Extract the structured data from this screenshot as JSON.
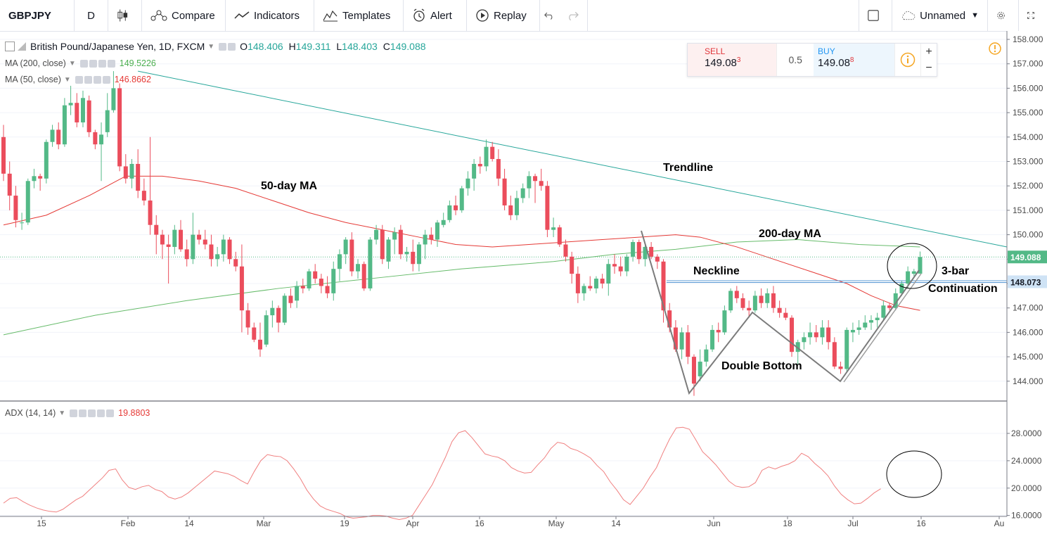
{
  "toolbar": {
    "symbol": "GBPJPY",
    "interval": "D",
    "compare": "Compare",
    "indicators": "Indicators",
    "templates": "Templates",
    "alert": "Alert",
    "replay": "Replay",
    "layout_name": "Unnamed"
  },
  "legend": {
    "title": "British Pound/Japanese Yen, 1D, FXCM",
    "ohlc": {
      "o_label": "O",
      "o": "148.406",
      "h_label": "H",
      "h": "149.311",
      "l_label": "L",
      "l": "148.403",
      "c_label": "C",
      "c": "149.088"
    },
    "ma200": {
      "label": "MA (200, close)",
      "value": "149.5226",
      "color": "#4caf50"
    },
    "ma50": {
      "label": "MA (50, close)",
      "value": "146.8662",
      "color": "#e53935"
    },
    "adx": {
      "label": "ADX (14, 14)",
      "value": "19.8803",
      "color": "#e53935"
    }
  },
  "trade": {
    "sell_label": "SELL",
    "sell_main": "149.08",
    "sell_sup": "3",
    "spread": "0.5",
    "buy_label": "BUY",
    "buy_main": "149.08",
    "buy_sup": "8"
  },
  "annotations": {
    "trendline": "Trendline",
    "ma50": "50-day MA",
    "ma200": "200-day MA",
    "neckline": "Neckline",
    "three_bar": "3-bar",
    "continuation": "Continuation",
    "double_bottom": "Double Bottom"
  },
  "colors": {
    "up": "#53b987",
    "down": "#eb4d5c",
    "trend": "#26a69a",
    "ma50": "#e53935",
    "ma200": "#66bb6a",
    "adx": "#f08080"
  },
  "chart_data": {
    "type": "candlestick",
    "price_axis": {
      "min": 143.5,
      "max": 158.0,
      "ticks": [
        "158.000",
        "157.000",
        "156.000",
        "155.000",
        "154.000",
        "153.000",
        "152.000",
        "151.000",
        "150.000",
        "149.000",
        "148.000",
        "147.000",
        "146.000",
        "145.000",
        "144.000"
      ]
    },
    "time_axis_labels": [
      "15",
      "Feb",
      "14",
      "Mar",
      "19",
      "Apr",
      "16",
      "May",
      "14",
      "Jun",
      "18",
      "Jul",
      "16",
      "Au"
    ],
    "last_price": "149.088",
    "neckline_price": "148.073",
    "candles": [
      [
        154.0,
        154.5,
        152.2,
        152.5
      ],
      [
        152.5,
        153.0,
        151.0,
        151.6
      ],
      [
        151.6,
        152.0,
        150.3,
        150.6
      ],
      [
        150.5,
        150.9,
        150.2,
        150.5
      ],
      [
        150.5,
        152.3,
        150.4,
        152.2
      ],
      [
        152.2,
        152.7,
        151.9,
        152.4
      ],
      [
        152.4,
        152.5,
        151.8,
        152.3
      ],
      [
        152.3,
        153.9,
        152.1,
        153.8
      ],
      [
        153.8,
        154.5,
        153.6,
        154.3
      ],
      [
        154.3,
        154.6,
        153.5,
        153.7
      ],
      [
        153.7,
        155.6,
        153.6,
        155.3
      ],
      [
        155.3,
        156.1,
        154.9,
        155.4
      ],
      [
        155.4,
        155.8,
        154.4,
        154.6
      ],
      [
        154.6,
        155.9,
        154.4,
        155.6
      ],
      [
        155.5,
        155.7,
        154.0,
        154.2
      ],
      [
        154.2,
        154.3,
        153.5,
        153.7
      ],
      [
        153.7,
        154.6,
        152.2,
        154.1
      ],
      [
        154.2,
        155.8,
        154.0,
        155.1
      ],
      [
        155.1,
        156.7,
        155.0,
        156.0
      ],
      [
        156.0,
        156.2,
        152.6,
        152.8
      ],
      [
        152.8,
        153.3,
        152.1,
        152.3
      ],
      [
        152.3,
        153.1,
        151.9,
        152.9
      ],
      [
        152.9,
        153.5,
        151.5,
        151.8
      ],
      [
        151.8,
        152.3,
        151.2,
        151.4
      ],
      [
        151.4,
        154.0,
        150.0,
        150.4
      ],
      [
        150.4,
        150.8,
        149.2,
        150.0
      ],
      [
        150.0,
        150.2,
        149.0,
        149.6
      ],
      [
        149.6,
        150.0,
        148.0,
        149.5
      ],
      [
        149.5,
        150.4,
        149.2,
        150.2
      ],
      [
        150.2,
        150.6,
        149.3,
        149.4
      ],
      [
        149.4,
        149.8,
        148.7,
        149.0
      ],
      [
        149.0,
        150.9,
        148.8,
        150.0
      ],
      [
        150.0,
        150.2,
        149.6,
        149.8
      ],
      [
        149.8,
        150.2,
        149.4,
        149.6
      ],
      [
        149.6,
        150.0,
        148.7,
        149.0
      ],
      [
        149.0,
        149.5,
        148.7,
        149.2
      ],
      [
        149.2,
        150.0,
        148.9,
        149.8
      ],
      [
        149.8,
        149.9,
        148.8,
        149.0
      ],
      [
        149.0,
        149.3,
        148.5,
        148.7
      ],
      [
        148.7,
        149.6,
        146.0,
        146.9
      ],
      [
        146.9,
        147.2,
        145.9,
        146.2
      ],
      [
        146.2,
        146.4,
        145.6,
        145.7
      ],
      [
        145.7,
        146.4,
        145.0,
        145.3
      ],
      [
        145.5,
        146.9,
        145.4,
        146.7
      ],
      [
        146.7,
        147.3,
        146.2,
        147.0
      ],
      [
        147.0,
        147.1,
        146.0,
        146.4
      ],
      [
        146.4,
        147.6,
        146.3,
        147.5
      ],
      [
        147.5,
        147.8,
        147.0,
        147.2
      ],
      [
        147.3,
        148.1,
        147.0,
        147.9
      ],
      [
        147.9,
        148.2,
        147.6,
        147.8
      ],
      [
        147.8,
        148.6,
        147.7,
        148.5
      ],
      [
        148.5,
        148.8,
        148.0,
        148.2
      ],
      [
        148.2,
        148.4,
        147.6,
        147.9
      ],
      [
        147.9,
        148.3,
        147.4,
        147.6
      ],
      [
        147.6,
        148.9,
        147.3,
        148.6
      ],
      [
        148.6,
        149.4,
        148.1,
        149.2
      ],
      [
        149.2,
        149.9,
        148.8,
        149.8
      ],
      [
        149.8,
        150.1,
        148.3,
        148.5
      ],
      [
        148.5,
        149.0,
        148.2,
        148.8
      ],
      [
        148.8,
        148.9,
        147.7,
        147.8
      ],
      [
        147.8,
        149.9,
        147.7,
        149.8
      ],
      [
        149.8,
        150.4,
        149.6,
        150.2
      ],
      [
        150.2,
        150.4,
        148.8,
        149.0
      ],
      [
        148.9,
        149.9,
        148.6,
        149.8
      ],
      [
        149.8,
        150.3,
        149.2,
        150.1
      ],
      [
        150.2,
        150.4,
        149.0,
        149.2
      ],
      [
        149.2,
        149.5,
        148.9,
        149.3
      ],
      [
        149.3,
        149.8,
        148.5,
        148.8
      ],
      [
        148.8,
        149.7,
        148.5,
        149.6
      ],
      [
        149.6,
        150.2,
        149.0,
        150.0
      ],
      [
        150.0,
        150.3,
        149.6,
        149.8
      ],
      [
        149.8,
        150.6,
        149.5,
        150.5
      ],
      [
        150.4,
        150.9,
        150.3,
        150.6
      ],
      [
        150.6,
        151.4,
        150.5,
        151.2
      ],
      [
        151.2,
        151.6,
        150.8,
        151.0
      ],
      [
        151.0,
        152.0,
        150.9,
        151.9
      ],
      [
        151.9,
        152.6,
        151.6,
        152.3
      ],
      [
        152.3,
        153.1,
        151.8,
        152.9
      ],
      [
        152.9,
        153.2,
        152.5,
        152.8
      ],
      [
        152.8,
        153.9,
        152.6,
        153.6
      ],
      [
        153.6,
        153.8,
        153.0,
        153.1
      ],
      [
        153.1,
        153.5,
        152.0,
        152.3
      ],
      [
        152.3,
        152.7,
        151.0,
        151.2
      ],
      [
        151.2,
        151.6,
        150.6,
        150.8
      ],
      [
        150.8,
        151.8,
        150.6,
        151.5
      ],
      [
        151.5,
        152.1,
        151.3,
        151.9
      ],
      [
        151.9,
        152.6,
        151.5,
        152.4
      ],
      [
        152.4,
        152.5,
        151.3,
        152.2
      ],
      [
        152.2,
        152.7,
        151.8,
        152.0
      ],
      [
        152.0,
        152.2,
        149.9,
        150.2
      ],
      [
        150.2,
        150.7,
        149.9,
        150.3
      ],
      [
        150.3,
        150.4,
        149.5,
        149.6
      ],
      [
        149.6,
        149.8,
        148.9,
        149.1
      ],
      [
        149.1,
        149.3,
        148.0,
        148.4
      ],
      [
        148.4,
        148.7,
        147.2,
        147.6
      ],
      [
        147.6,
        148.0,
        147.3,
        147.9
      ],
      [
        147.9,
        148.3,
        147.7,
        147.8
      ],
      [
        147.8,
        148.3,
        147.6,
        148.2
      ],
      [
        148.2,
        148.4,
        147.8,
        148.0
      ],
      [
        148.0,
        149.0,
        147.5,
        148.8
      ],
      [
        148.8,
        149.2,
        148.4,
        148.7
      ],
      [
        148.7,
        149.1,
        148.3,
        148.5
      ],
      [
        148.5,
        149.2,
        148.3,
        149.1
      ],
      [
        149.1,
        149.8,
        148.9,
        149.7
      ],
      [
        149.7,
        149.8,
        148.8,
        149.0
      ],
      [
        149.0,
        149.6,
        148.7,
        149.5
      ],
      [
        149.5,
        149.7,
        149.0,
        149.1
      ],
      [
        149.1,
        149.2,
        148.6,
        148.9
      ],
      [
        148.9,
        149.0,
        146.4,
        146.9
      ],
      [
        146.9,
        147.2,
        146.0,
        146.2
      ],
      [
        146.2,
        146.5,
        145.2,
        145.3
      ],
      [
        145.3,
        146.2,
        144.9,
        146.0
      ],
      [
        146.0,
        146.3,
        144.7,
        145.0
      ],
      [
        145.0,
        145.1,
        143.4,
        143.9
      ],
      [
        144.2,
        145.3,
        144.0,
        144.8
      ],
      [
        144.8,
        145.5,
        144.6,
        145.3
      ],
      [
        145.3,
        146.3,
        145.2,
        146.1
      ],
      [
        146.1,
        146.4,
        145.6,
        146.0
      ],
      [
        146.0,
        147.1,
        145.9,
        146.9
      ],
      [
        146.9,
        147.8,
        146.8,
        147.7
      ],
      [
        147.7,
        147.9,
        147.2,
        147.4
      ],
      [
        147.4,
        147.6,
        146.9,
        147.0
      ],
      [
        147.0,
        147.3,
        146.6,
        146.9
      ],
      [
        146.9,
        147.7,
        146.8,
        147.5
      ],
      [
        147.5,
        147.8,
        147.0,
        147.2
      ],
      [
        147.2,
        147.8,
        147.0,
        147.6
      ],
      [
        147.6,
        147.9,
        146.8,
        147.0
      ],
      [
        147.0,
        147.3,
        146.6,
        146.8
      ],
      [
        146.8,
        147.0,
        146.5,
        146.6
      ],
      [
        146.6,
        146.7,
        145.0,
        145.2
      ],
      [
        145.2,
        145.7,
        144.7,
        145.6
      ],
      [
        145.6,
        146.0,
        145.3,
        145.8
      ],
      [
        145.8,
        146.4,
        145.5,
        146.0
      ],
      [
        146.0,
        146.3,
        145.6,
        145.8
      ],
      [
        145.8,
        146.5,
        145.5,
        146.2
      ],
      [
        146.2,
        146.5,
        145.3,
        145.6
      ],
      [
        145.6,
        145.8,
        144.5,
        144.6
      ],
      [
        144.6,
        144.8,
        144.3,
        144.5
      ],
      [
        144.5,
        146.2,
        144.4,
        146.1
      ],
      [
        146.0,
        146.4,
        145.6,
        146.1
      ],
      [
        146.1,
        146.5,
        145.9,
        146.2
      ],
      [
        146.2,
        146.7,
        146.1,
        146.4
      ],
      [
        146.4,
        146.7,
        146.1,
        146.5
      ],
      [
        146.5,
        146.8,
        146.2,
        146.6
      ],
      [
        146.6,
        147.3,
        146.5,
        147.1
      ],
      [
        147.1,
        147.2,
        146.9,
        147.0
      ],
      [
        147.0,
        147.8,
        146.9,
        147.6
      ],
      [
        147.6,
        148.1,
        147.5,
        148.0
      ],
      [
        148.0,
        148.7,
        147.8,
        148.5
      ],
      [
        148.4,
        148.6,
        148.3,
        148.5
      ],
      [
        148.406,
        149.311,
        148.403,
        149.088
      ]
    ],
    "ma50": [
      [
        0,
        150.4
      ],
      [
        7,
        150.8
      ],
      [
        14,
        151.6
      ],
      [
        20,
        152.4
      ],
      [
        26,
        152.4
      ],
      [
        32,
        152.2
      ],
      [
        38,
        151.9
      ],
      [
        44,
        151.4
      ],
      [
        50,
        150.9
      ],
      [
        56,
        150.5
      ],
      [
        62,
        150.2
      ],
      [
        68,
        149.9
      ],
      [
        74,
        149.6
      ],
      [
        80,
        149.5
      ],
      [
        86,
        149.6
      ],
      [
        92,
        149.7
      ],
      [
        98,
        149.8
      ],
      [
        104,
        149.9
      ],
      [
        110,
        150.0
      ],
      [
        114,
        149.9
      ],
      [
        120,
        149.5
      ],
      [
        126,
        149.0
      ],
      [
        132,
        148.5
      ],
      [
        138,
        148.0
      ],
      [
        142,
        147.5
      ],
      [
        146,
        147.1
      ],
      [
        150,
        146.9
      ]
    ],
    "ma200": [
      [
        0,
        145.9
      ],
      [
        15,
        146.7
      ],
      [
        30,
        147.3
      ],
      [
        45,
        147.8
      ],
      [
        60,
        148.2
      ],
      [
        75,
        148.6
      ],
      [
        90,
        148.9
      ],
      [
        100,
        149.2
      ],
      [
        110,
        149.4
      ],
      [
        120,
        149.7
      ],
      [
        130,
        149.8
      ],
      [
        140,
        149.6
      ],
      [
        150,
        149.5
      ]
    ],
    "trendline": [
      [
        22,
        156.7
      ],
      [
        160,
        149.5
      ]
    ],
    "adx_axis": {
      "min": 15.0,
      "max": 29.5,
      "ticks": [
        "28.0000",
        "24.0000",
        "20.0000",
        "16.0000"
      ]
    },
    "adx": [
      17.8,
      18.5,
      18.6,
      18.0,
      17.5,
      17.1,
      16.8,
      16.6,
      16.5,
      16.9,
      17.6,
      18.3,
      18.8,
      19.7,
      20.6,
      21.5,
      22.6,
      22.8,
      21.2,
      20.1,
      19.8,
      20.2,
      20.4,
      19.8,
      19.5,
      18.7,
      18.4,
      18.7,
      19.3,
      20.1,
      20.9,
      21.7,
      22.5,
      22.3,
      22.1,
      21.7,
      21.1,
      20.6,
      22.4,
      24.0,
      24.9,
      24.7,
      24.6,
      24.0,
      22.8,
      21.4,
      19.7,
      18.4,
      17.4,
      16.9,
      16.6,
      16.3,
      15.8,
      15.6,
      15.7,
      15.8,
      16.0,
      16.0,
      15.9,
      15.6,
      15.4,
      15.6,
      16.0,
      17.5,
      19.0,
      20.5,
      22.5,
      24.5,
      26.8,
      28.1,
      28.4,
      27.4,
      26.2,
      25.0,
      24.7,
      24.5,
      24.0,
      23.0,
      22.5,
      22.2,
      22.3,
      23.4,
      24.4,
      25.8,
      26.7,
      26.5,
      25.8,
      25.5,
      25.0,
      24.4,
      23.3,
      22.4,
      20.9,
      19.7,
      18.3,
      17.6,
      18.8,
      20.0,
      21.6,
      23.0,
      25.2,
      27.2,
      28.8,
      28.9,
      28.6,
      27.0,
      25.3,
      24.4,
      23.4,
      22.2,
      21.0,
      20.3,
      20.1,
      20.2,
      20.8,
      22.6,
      23.1,
      22.8,
      23.2,
      23.5,
      24.0,
      25.1,
      24.6,
      23.6,
      22.8,
      21.8,
      20.3,
      19.1,
      18.3,
      17.7,
      17.8,
      18.5,
      19.3,
      19.9
    ]
  }
}
